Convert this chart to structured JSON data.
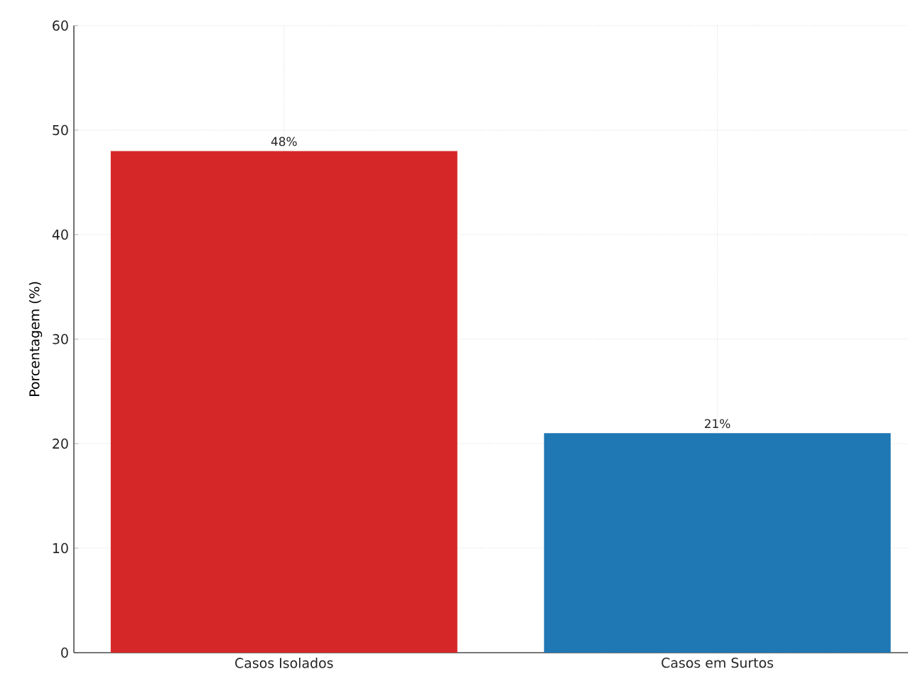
{
  "chart_data": {
    "type": "bar",
    "ylabel": "Porcentagem (%)",
    "categories": [
      "Casos Isolados",
      "Casos em Surtos"
    ],
    "values": [
      48,
      21
    ],
    "colors": [
      "#d62728",
      "#1f77b4"
    ],
    "value_labels": [
      "48%",
      "21%"
    ],
    "ylim": [
      0,
      60
    ],
    "yticks": [
      0,
      10,
      20,
      30,
      40,
      50,
      60
    ],
    "grid": true
  }
}
